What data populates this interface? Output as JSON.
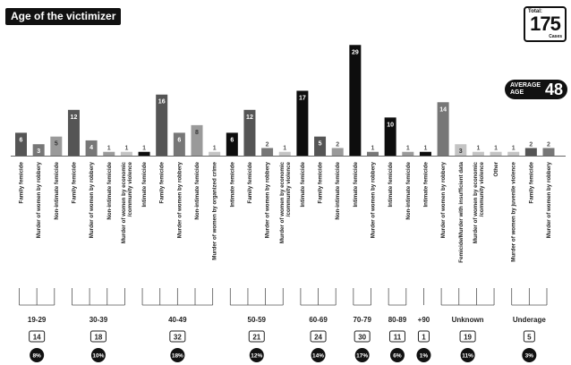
{
  "title": "Age of the victimizer",
  "total": {
    "label": "Total:",
    "value": "175",
    "unit": "Cases"
  },
  "average": {
    "line1": "AVERAGE",
    "line2": "AGE",
    "value": "48"
  },
  "chart_data": {
    "type": "bar",
    "ylim": [
      0,
      30
    ],
    "grid": false,
    "bars": [
      {
        "label": "Family femicide",
        "value": 6,
        "shade": "dark"
      },
      {
        "label": "Murder of women by robbery",
        "value": 3,
        "shade": "mid"
      },
      {
        "label": "Non-intimate femicide",
        "value": 5,
        "shade": "light"
      },
      {
        "label": "Family femicide",
        "value": 12,
        "shade": "dark"
      },
      {
        "label": "Murder of women by robbery",
        "value": 4,
        "shade": "mid"
      },
      {
        "label": "Non-intimate femicide",
        "value": 1,
        "shade": "light"
      },
      {
        "label": "Murder of women by economic /community violence",
        "value": 1,
        "shade": "pale"
      },
      {
        "label": "Intimate femicide",
        "value": 1,
        "shade": "black"
      },
      {
        "label": "Family femicide",
        "value": 16,
        "shade": "dark"
      },
      {
        "label": "Murder of women by robbery",
        "value": 6,
        "shade": "mid"
      },
      {
        "label": "Non-intimate femicide",
        "value": 8,
        "shade": "light"
      },
      {
        "label": "Murder of women by organized crime",
        "value": 1,
        "shade": "pale"
      },
      {
        "label": "Intimate femicide",
        "value": 6,
        "shade": "black"
      },
      {
        "label": "Family femicide",
        "value": 12,
        "shade": "dark"
      },
      {
        "label": "Murder of women by robbery",
        "value": 2,
        "shade": "mid"
      },
      {
        "label": "Murder of women by economic /community violence",
        "value": 1,
        "shade": "pale"
      },
      {
        "label": "Intimate femicide",
        "value": 17,
        "shade": "black"
      },
      {
        "label": "Family femicide",
        "value": 5,
        "shade": "dark"
      },
      {
        "label": "Non-intimate femicide",
        "value": 2,
        "shade": "light"
      },
      {
        "label": "Intimate femicide",
        "value": 29,
        "shade": "black"
      },
      {
        "label": "Murder of women by robbery",
        "value": 1,
        "shade": "mid"
      },
      {
        "label": "Intimate femicide",
        "value": 10,
        "shade": "black"
      },
      {
        "label": "Non-intimate femicide",
        "value": 1,
        "shade": "light"
      },
      {
        "label": "Intimate femicide",
        "value": 1,
        "shade": "black"
      },
      {
        "label": "Murder of women by robbery",
        "value": 14,
        "shade": "mid"
      },
      {
        "label": "Femicide/Murder with insufficient data",
        "value": 3,
        "shade": "pale"
      },
      {
        "label": "Murder of women by economic /community violence",
        "value": 1,
        "shade": "pale"
      },
      {
        "label": "Other",
        "value": 1,
        "shade": "pale"
      },
      {
        "label": "Murder of women by juvenile violence",
        "value": 1,
        "shade": "pale"
      },
      {
        "label": "Family femicide",
        "value": 2,
        "shade": "dark"
      },
      {
        "label": "Murder of women by robbery",
        "value": 2,
        "shade": "mid"
      }
    ],
    "groups": [
      {
        "name": "19-29",
        "count": "14",
        "pct": "8%",
        "start": 0,
        "end": 2
      },
      {
        "name": "30-39",
        "count": "18",
        "pct": "10%",
        "start": 3,
        "end": 6
      },
      {
        "name": "40-49",
        "count": "32",
        "pct": "18%",
        "start": 7,
        "end": 11
      },
      {
        "name": "50-59",
        "count": "21",
        "pct": "12%",
        "start": 12,
        "end": 15
      },
      {
        "name": "60-69",
        "count": "24",
        "pct": "14%",
        "start": 16,
        "end": 18
      },
      {
        "name": "70-79",
        "count": "30",
        "pct": "17%",
        "start": 19,
        "end": 20
      },
      {
        "name": "80-89",
        "count": "11",
        "pct": "6%",
        "start": 21,
        "end": 22
      },
      {
        "name": "+90",
        "count": "1",
        "pct": "1%",
        "start": 23,
        "end": 23
      },
      {
        "name": "Unknown",
        "count": "19",
        "pct": "11%",
        "start": 24,
        "end": 27
      },
      {
        "name": "Underage",
        "count": "5",
        "pct": "3%",
        "start": 28,
        "end": 30
      }
    ],
    "colors": {
      "black": "#0d0d0d",
      "dark": "#555555",
      "mid": "#777777",
      "light": "#9a9a9a",
      "pale": "#c4c4c4"
    }
  }
}
